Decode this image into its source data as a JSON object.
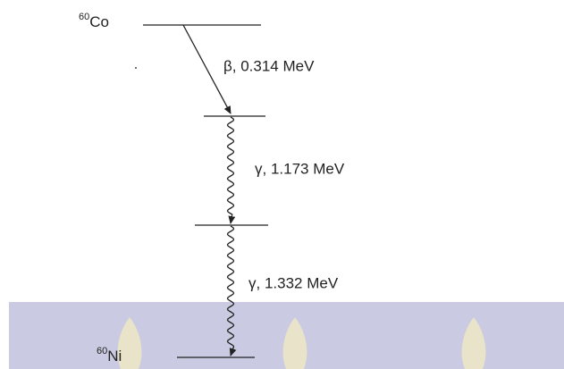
{
  "parent": {
    "mass_number": "60",
    "symbol": "Co"
  },
  "daughter": {
    "mass_number": "60",
    "symbol": "Ni"
  },
  "transitions": [
    {
      "label": "β, 0.314 MeV"
    },
    {
      "label": "γ, 1.173 MeV"
    },
    {
      "label": "γ, 1.332 MeV"
    }
  ]
}
